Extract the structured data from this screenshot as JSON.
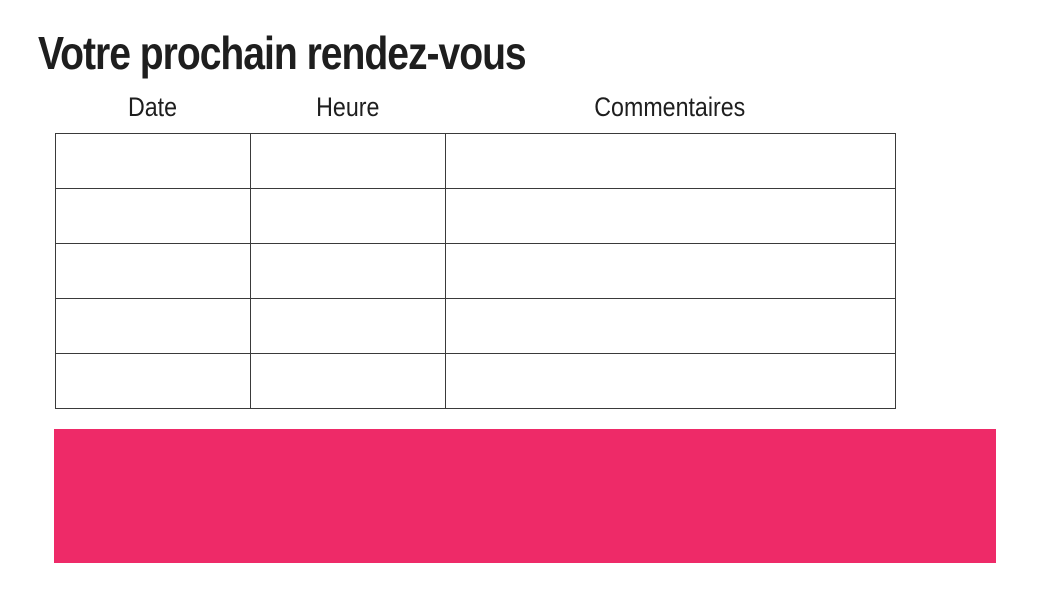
{
  "page": {
    "title": "Votre prochain rendez-vous"
  },
  "table": {
    "headers": [
      "Date",
      "Heure",
      "Commentaires"
    ],
    "rows": [
      [
        "",
        "",
        ""
      ],
      [
        "",
        "",
        ""
      ],
      [
        "",
        "",
        ""
      ],
      [
        "",
        "",
        ""
      ],
      [
        "",
        "",
        ""
      ]
    ]
  },
  "banner": {
    "color": "#ee2a68"
  },
  "colors": {
    "text": "#1e1e1e",
    "table_border": "#3a3a3a"
  }
}
